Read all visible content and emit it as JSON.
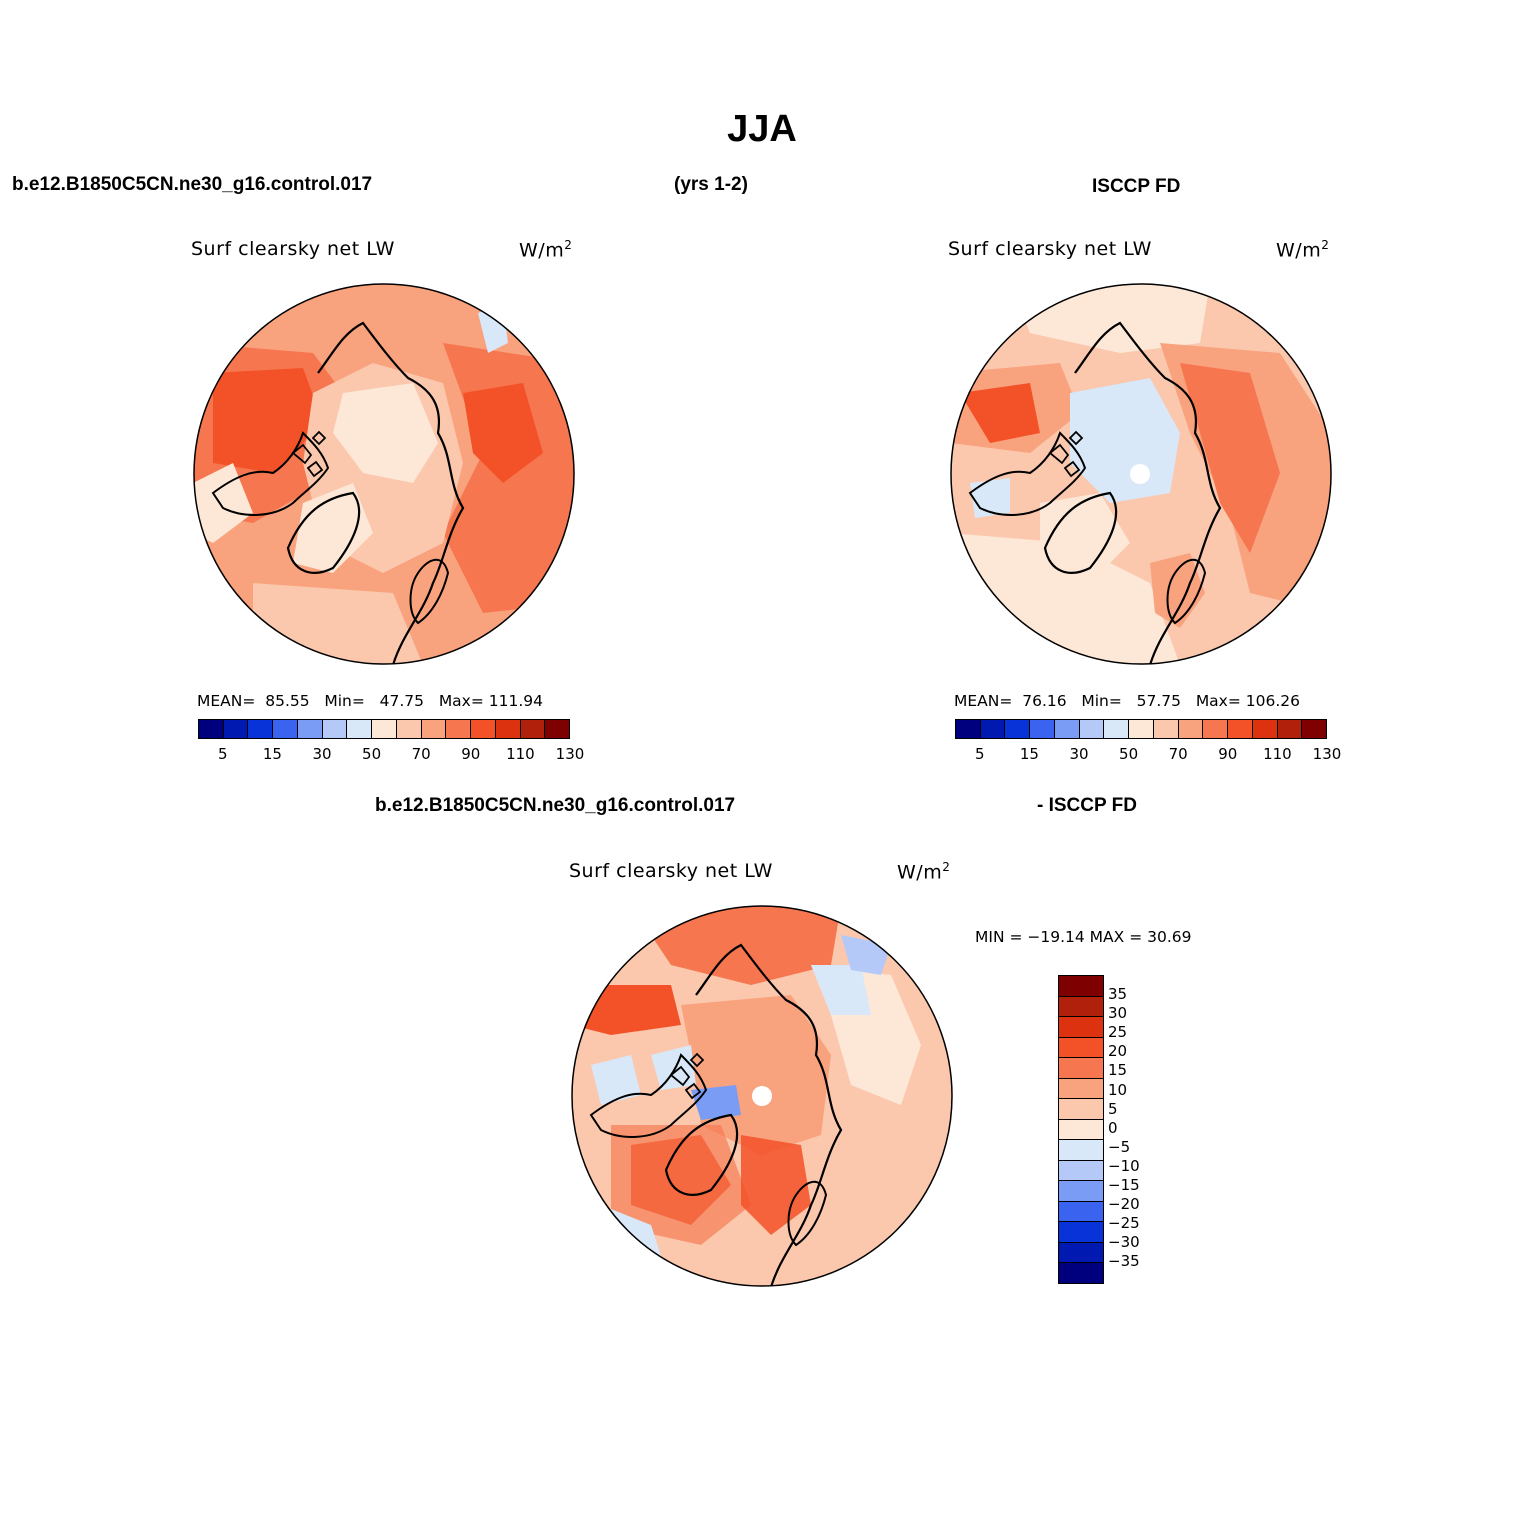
{
  "season_title": "JJA",
  "header": {
    "model_case": "b.e12.B1850C5CN.ne30_g16.control.017",
    "years": "(yrs 1-2)",
    "obs_name": "ISCCP FD"
  },
  "panels": [
    {
      "name": "model",
      "variable": "Surf  clearsky  net  LW",
      "units": "W/m",
      "units_sup": "2",
      "stats": {
        "mean_label": "MEAN=",
        "mean": "85.55",
        "min_label": "Min=",
        "min": "47.75",
        "max_label": "Max=",
        "max": "111.94"
      }
    },
    {
      "name": "obs",
      "variable": "Surf  clearsky  net  LW",
      "units": "W/m",
      "units_sup": "2",
      "stats": {
        "mean_label": "MEAN=",
        "mean": "76.16",
        "min_label": "Min=",
        "min": "57.75",
        "max_label": "Max=",
        "max": "106.26"
      }
    }
  ],
  "colorbar_abs": {
    "colors": [
      "#00007f",
      "#0019b0",
      "#0733d8",
      "#3a63f0",
      "#7b9cf5",
      "#b4c9f8",
      "#d8e8f8",
      "#fde8d8",
      "#fbc8ae",
      "#f9a27e",
      "#f6764f",
      "#f35128",
      "#dc3210",
      "#b0200a",
      "#7f0000"
    ],
    "tick_labels": [
      "5",
      "15",
      "30",
      "50",
      "70",
      "90",
      "110",
      "130"
    ]
  },
  "diff": {
    "header_left": "b.e12.B1850C5CN.ne30_g16.control.017",
    "header_right": "- ISCCP FD",
    "variable": "Surf  clearsky  net  LW",
    "units": "W/m",
    "units_sup": "2",
    "minmax": "MIN = −19.14 MAX =   30.69",
    "colorbar": {
      "colors": [
        "#7f0000",
        "#b0200a",
        "#dc3210",
        "#f35128",
        "#f6764f",
        "#f9a27e",
        "#fbc8ae",
        "#fde8d8",
        "#d8e8f8",
        "#b4c9f8",
        "#7b9cf5",
        "#3a63f0",
        "#0733d8",
        "#0019b0",
        "#00007f"
      ],
      "labels": [
        "35",
        "30",
        "25",
        "20",
        "15",
        "10",
        "5",
        "0",
        "−5",
        "−10",
        "−15",
        "−20",
        "−25",
        "−30",
        "−35"
      ]
    }
  },
  "map_colors": {
    "pale": "#fde8d8",
    "light": "#fbc8ae",
    "mid": "#f9a27e",
    "orange": "#f6764f",
    "red": "#f35128",
    "paleblue": "#d8e8f8",
    "blue": "#b4c9f8",
    "bluemid": "#7b9cf5"
  }
}
